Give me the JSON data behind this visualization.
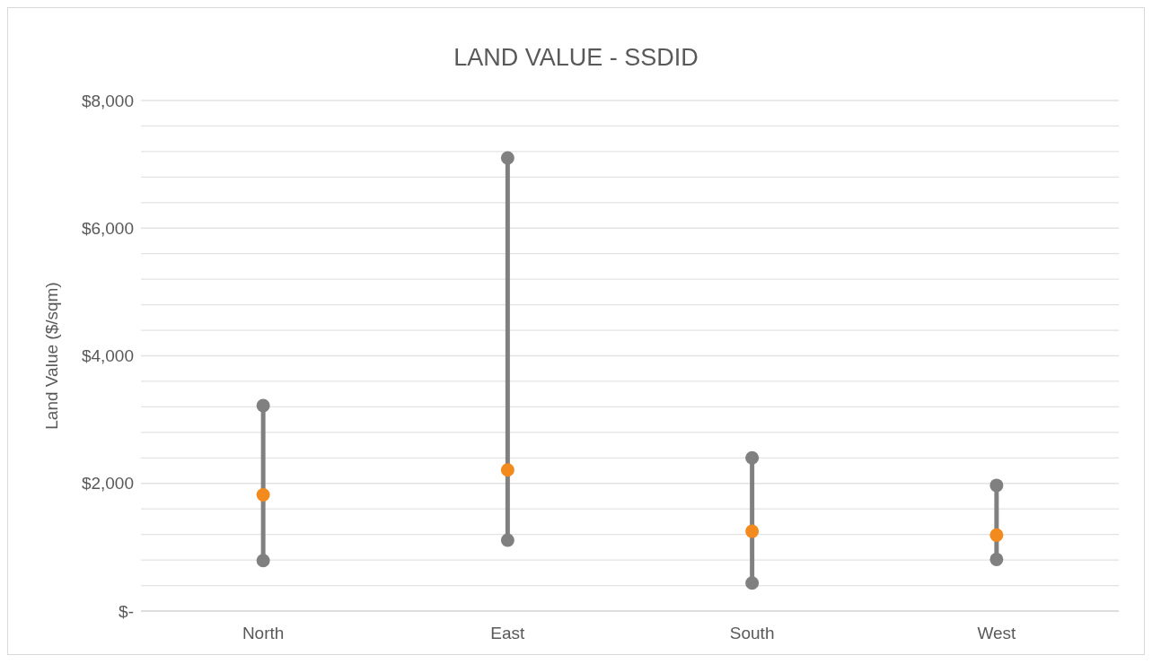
{
  "chart_data": {
    "type": "line",
    "title": "LAND VALUE - SSDID",
    "ylabel": "Land Value ($/sqm)",
    "categories": [
      "North",
      "East",
      "South",
      "West"
    ],
    "series": [
      {
        "color": "#808080",
        "x": [
          "North",
          "North"
        ],
        "values": [
          790,
          3220
        ]
      },
      {
        "color": "#808080",
        "x": [
          "East",
          "East"
        ],
        "values": [
          1110,
          7100
        ]
      },
      {
        "color": "#808080",
        "x": [
          "South",
          "South"
        ],
        "values": [
          440,
          2400
        ]
      },
      {
        "color": "#808080",
        "x": [
          "West",
          "West"
        ],
        "values": [
          810,
          1970
        ]
      },
      {
        "type": "scatter",
        "color": "#f28a1e",
        "values": [
          1820,
          2210,
          1250,
          1190
        ]
      }
    ],
    "ylim": [
      0,
      8000
    ],
    "yticks": [
      {
        "value": 0,
        "label": "$-"
      },
      {
        "value": 400,
        "label": null
      },
      {
        "value": 800,
        "label": null
      },
      {
        "value": 1200,
        "label": null
      },
      {
        "value": 1600,
        "label": null
      },
      {
        "value": 2000,
        "label": "$2,000"
      },
      {
        "value": 2400,
        "label": null
      },
      {
        "value": 2800,
        "label": null
      },
      {
        "value": 3200,
        "label": null
      },
      {
        "value": 3600,
        "label": null
      },
      {
        "value": 4000,
        "label": "$4,000"
      },
      {
        "value": 4400,
        "label": null
      },
      {
        "value": 4800,
        "label": null
      },
      {
        "value": 5200,
        "label": null
      },
      {
        "value": 5600,
        "label": null
      },
      {
        "value": 6000,
        "label": "$6,000"
      },
      {
        "value": 6400,
        "label": null
      },
      {
        "value": 6800,
        "label": null
      },
      {
        "value": 7200,
        "label": null
      },
      {
        "value": 7600,
        "label": null
      },
      {
        "value": 8000,
        "label": "$8,000"
      }
    ],
    "grid": "y",
    "marker": "circle",
    "line_style": "solid"
  }
}
